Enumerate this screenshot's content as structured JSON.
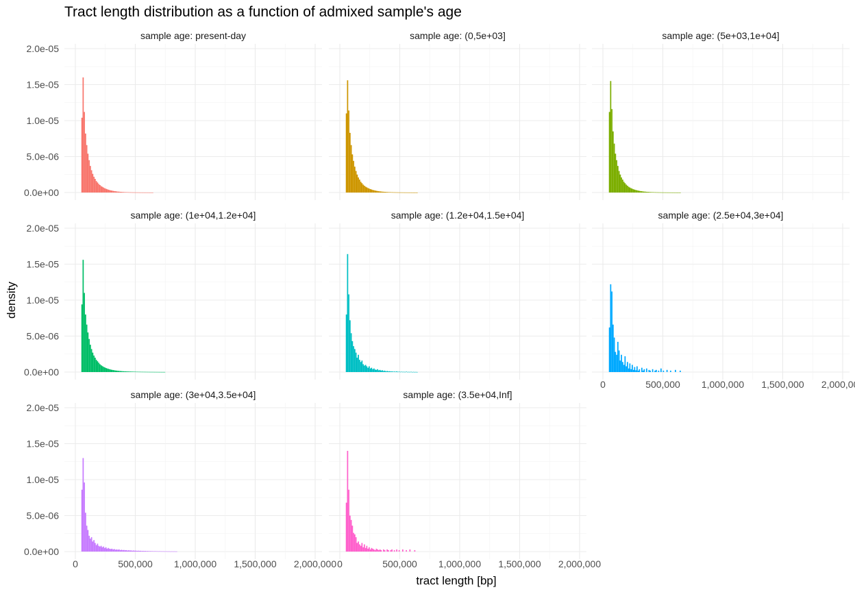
{
  "chart_data": {
    "type": "bar",
    "title": "Tract length distribution as a function of admixed sample's age",
    "xlabel": "tract length [bp]",
    "ylabel": "density",
    "xlim": [
      0,
      2000000
    ],
    "ylim": [
      0,
      2e-05
    ],
    "grid": true,
    "legend": "none",
    "x_ticks": [
      0,
      500000,
      1000000,
      1500000,
      2000000
    ],
    "x_tick_labels": [
      "0",
      "500,000",
      "1,000,000",
      "1,500,000",
      "2,000,000"
    ],
    "y_ticks": [
      0,
      5e-06,
      1e-05,
      1.5e-05,
      2e-05
    ],
    "y_tick_labels": [
      "0.0e+00",
      "5.0e-06",
      "1.0e-05",
      "1.5e-05",
      "2.0e-05"
    ],
    "bin_width": 10000,
    "panels": [
      {
        "label": "sample age: present-day",
        "color": "#F8766D",
        "bins_start": 50000,
        "density": [
          1.04e-05,
          1.6e-05,
          1.12e-05,
          8.2e-06,
          6.6e-06,
          5.4e-06,
          4.5e-06,
          3.7e-06,
          3.1e-06,
          2.6e-06,
          2.2e-06,
          1.9e-06,
          1.6e-06,
          1.4e-06,
          1.2e-06,
          1.05e-06,
          9e-07,
          8e-07,
          7e-07,
          6e-07,
          5.3e-07,
          4.6e-07,
          4e-07,
          3.5e-07,
          3e-07,
          2.7e-07,
          2.3e-07,
          2e-07,
          1.8e-07,
          1.5e-07,
          1.3e-07,
          1.2e-07,
          1e-07,
          9e-08,
          8e-08,
          7e-08,
          6e-08,
          5.5e-08,
          5e-08,
          4.5e-08,
          4e-08,
          3.5e-08,
          3e-08,
          2.8e-08,
          2.5e-08,
          2.2e-08,
          2e-08,
          1.8e-08,
          1.6e-08,
          1.4e-08,
          1.3e-08,
          1.2e-08,
          1e-08,
          1e-08,
          9e-09,
          8e-09,
          7e-09,
          6e-09,
          5e-09,
          5e-09
        ]
      },
      {
        "label": "sample age: (0,5e+03]",
        "color": "#CD9600",
        "bins_start": 50000,
        "density": [
          1.1e-05,
          1.56e-05,
          1.14e-05,
          8.3e-06,
          6.6e-06,
          5.3e-06,
          4.4e-06,
          3.6e-06,
          3e-06,
          2.5e-06,
          2.1e-06,
          1.8e-06,
          1.5e-06,
          1.3e-06,
          1.1e-06,
          9.5e-07,
          8.2e-07,
          7.2e-07,
          6.3e-07,
          5.5e-07,
          4.8e-07,
          4.2e-07,
          3.6e-07,
          3.2e-07,
          2.8e-07,
          2.4e-07,
          2.1e-07,
          1.8e-07,
          1.6e-07,
          1.4e-07,
          1.2e-07,
          1.1e-07,
          9.5e-08,
          8.5e-08,
          7.5e-08,
          6.5e-08,
          5.8e-08,
          5.2e-08,
          4.6e-08,
          4.1e-08,
          3.6e-08,
          3.2e-08,
          2.8e-08,
          2.5e-08,
          2.2e-08,
          2e-08,
          1.8e-08,
          1.6e-08,
          1.4e-08,
          1.2e-08,
          1.1e-08,
          1e-08,
          9e-09,
          8e-09,
          7e-09,
          6e-09,
          5.5e-09,
          5e-09,
          4.5e-09,
          4e-09
        ]
      },
      {
        "label": "sample age: (5e+03,1e+04]",
        "color": "#7CAE00",
        "bins_start": 50000,
        "density": [
          1.12e-05,
          1.55e-05,
          1.16e-05,
          8.5e-06,
          6.8e-06,
          5.4e-06,
          4.5e-06,
          3.7e-06,
          3e-06,
          2.5e-06,
          2.1e-06,
          1.8e-06,
          1.5e-06,
          1.3e-06,
          1.1e-06,
          9.5e-07,
          8e-07,
          7e-07,
          6.1e-07,
          5.3e-07,
          4.6e-07,
          4e-07,
          3.5e-07,
          3.1e-07,
          2.7e-07,
          2.3e-07,
          2e-07,
          1.8e-07,
          1.5e-07,
          1.3e-07,
          1.2e-07,
          1e-07,
          9e-08,
          8e-08,
          7e-08,
          6.2e-08,
          5.5e-08,
          4.9e-08,
          4.3e-08,
          3.8e-08,
          3.4e-08,
          3e-08,
          2.7e-08,
          2.4e-08,
          2.1e-08,
          1.9e-08,
          1.7e-08,
          1.5e-08,
          1.3e-08,
          1.2e-08,
          1e-08,
          9e-09,
          8e-09,
          7e-09,
          6.5e-09,
          6e-09,
          5e-09,
          4.5e-09,
          4e-09,
          3.5e-09
        ]
      },
      {
        "label": "sample age: (1e+04,1.2e+04]",
        "color": "#00BE67",
        "bins_start": 50000,
        "density": [
          9.4e-06,
          1.56e-05,
          1.1e-05,
          8e-06,
          6.6e-06,
          5.5e-06,
          4.6e-06,
          3.8e-06,
          3.2e-06,
          2.7e-06,
          2.3e-06,
          2e-06,
          1.7e-06,
          1.5e-06,
          1.3e-06,
          1.1e-06,
          9.5e-07,
          8.3e-07,
          7.3e-07,
          6.5e-07,
          5.7e-07,
          5e-07,
          4.5e-07,
          4e-07,
          3.5e-07,
          3.1e-07,
          2.8e-07,
          2.5e-07,
          2.2e-07,
          2e-07,
          1.8e-07,
          1.6e-07,
          1.5e-07,
          1.3e-07,
          1.2e-07,
          1.1e-07,
          1e-07,
          9e-08,
          8.5e-08,
          8e-08,
          7.5e-08,
          7e-08,
          6.5e-08,
          6e-08,
          5.5e-08,
          5e-08,
          4.8e-08,
          4.5e-08,
          4.2e-08,
          4e-08,
          3.7e-08,
          3.5e-08,
          3.3e-08,
          3.1e-08,
          2.9e-08,
          2.7e-08,
          2.5e-08,
          2.4e-08,
          2.3e-08,
          2.2e-08,
          2e-08,
          1.9e-08,
          1.8e-08,
          1.7e-08,
          1.6e-08,
          1.5e-08,
          1.4e-08,
          1.3e-08,
          1.3e-08,
          1.2e-08
        ]
      },
      {
        "label": "sample age: (1.2e+04,1.5e+04]",
        "color": "#00BFC4",
        "bins_start": 50000,
        "density": [
          8e-06,
          1.64e-05,
          1.08e-05,
          7.2e-06,
          5.4e-06,
          4.3e-06,
          3.6e-06,
          3.2e-06,
          2.7e-06,
          2e-06,
          2.4e-06,
          1.7e-06,
          1.4e-06,
          1.6e-06,
          1.1e-06,
          9e-07,
          1e-06,
          8e-07,
          6e-07,
          8e-07,
          5e-07,
          6e-07,
          4e-07,
          5e-07,
          3.5e-07,
          3e-07,
          4e-07,
          2.5e-07,
          3e-07,
          2e-07,
          2.5e-07,
          1.5e-07,
          2e-07,
          1e-07,
          1.5e-07,
          1e-07,
          1.2e-07,
          8e-08,
          1e-07,
          6e-08,
          8e-08,
          5e-08,
          1e-07,
          4e-08,
          6e-08,
          3e-08,
          5e-08,
          3e-08,
          4e-08,
          2e-08,
          6e-08,
          2e-08,
          3e-08,
          2e-08,
          4e-08,
          1e-08,
          3e-08,
          1e-08,
          2e-08,
          1e-08
        ]
      },
      {
        "label": "sample age: (2.5e+04,3e+04]",
        "color": "#00A9FF",
        "bins_start": 50000,
        "density": [
          6.2e-06,
          1.22e-05,
          1.12e-05,
          6.6e-06,
          4.8e-06,
          2.8e-06,
          2.4e-06,
          4.2e-06,
          3e-06,
          1.6e-06,
          2.4e-06,
          1.4e-06,
          1e-06,
          2.2e-06,
          8e-07,
          1.4e-06,
          5e-07,
          1.2e-06,
          4e-07,
          1e-06,
          3e-07,
          7e-07,
          2.5e-07,
          8e-07,
          2e-07,
          4e-07,
          0,
          6e-07,
          2e-07,
          4e-07,
          0,
          5e-07,
          0,
          3e-07,
          2e-07,
          0,
          4e-07,
          0,
          2e-07,
          3e-07,
          0,
          2e-07,
          0,
          5e-07,
          0,
          2e-07,
          0,
          0,
          3e-07,
          0,
          0,
          2e-07,
          0,
          0,
          0,
          3e-07,
          0,
          0,
          0,
          2e-07
        ]
      },
      {
        "label": "sample age: (3e+04,3.5e+04]",
        "color": "#C77CFF",
        "bins_start": 50000,
        "density": [
          8.6e-06,
          1.3e-05,
          9.6e-06,
          5.4e-06,
          3.6e-06,
          3e-06,
          2.2e-06,
          1.8e-06,
          2e-06,
          1.4e-06,
          1.6e-06,
          1.2e-06,
          9e-07,
          1.1e-06,
          8e-07,
          7e-07,
          8e-07,
          6e-07,
          7e-07,
          5e-07,
          6e-07,
          4e-07,
          5e-07,
          4e-07,
          3.5e-07,
          4e-07,
          3e-07,
          3.5e-07,
          2.5e-07,
          3e-07,
          2.5e-07,
          3e-07,
          2e-07,
          2.5e-07,
          2e-07,
          2.2e-07,
          1.8e-07,
          2e-07,
          1.5e-07,
          1.8e-07,
          1.5e-07,
          1.6e-07,
          1.2e-07,
          1.5e-07,
          1.2e-07,
          1.3e-07,
          1e-07,
          1.2e-07,
          1e-07,
          1.1e-07,
          8e-08,
          1e-07,
          8e-08,
          9e-08,
          7e-08,
          8e-08,
          6e-08,
          7e-08,
          6e-08,
          6e-08,
          5e-08,
          6e-08,
          5e-08,
          5e-08,
          4e-08,
          5e-08,
          4e-08,
          4e-08,
          4e-08,
          3e-08,
          4e-08,
          3e-08,
          3e-08,
          3e-08,
          2e-08,
          3e-08,
          2e-08,
          3e-08,
          2e-08,
          2e-08
        ]
      },
      {
        "label": "sample age: (3.5e+04,Inf]",
        "color": "#FF61CC",
        "bins_start": 50000,
        "density": [
          6.8e-06,
          1.4e-05,
          8.6e-06,
          5e-06,
          4.4e-06,
          3.6e-06,
          2.6e-06,
          2.4e-06,
          2e-06,
          1.2e-06,
          1.4e-06,
          1e-06,
          8e-07,
          1.2e-06,
          6e-07,
          1e-06,
          5e-07,
          8e-07,
          4e-07,
          6e-07,
          3e-07,
          5e-07,
          4e-07,
          3e-07,
          2e-07,
          4e-07,
          3e-07,
          2e-07,
          3e-07,
          2e-07,
          0,
          3e-07,
          2e-07,
          0,
          3e-07,
          2e-07,
          0,
          2e-07,
          3e-07,
          0,
          2e-07,
          0,
          3e-07,
          0,
          2e-07,
          0,
          0,
          3e-07,
          0,
          0,
          2e-07,
          0,
          0,
          3e-07,
          0,
          0,
          0,
          2e-07,
          0,
          0
        ]
      }
    ]
  }
}
